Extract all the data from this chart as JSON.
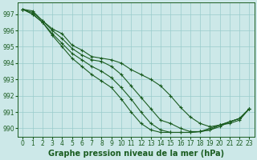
{
  "xlabel": "Graphe pression niveau de la mer (hPa)",
  "xlim": [
    -0.5,
    23.5
  ],
  "ylim": [
    989.5,
    997.7
  ],
  "yticks": [
    990,
    991,
    992,
    993,
    994,
    995,
    996,
    997
  ],
  "xticks": [
    0,
    1,
    2,
    3,
    4,
    5,
    6,
    7,
    8,
    9,
    10,
    11,
    12,
    13,
    14,
    15,
    16,
    17,
    18,
    19,
    20,
    21,
    22,
    23
  ],
  "bg_color": "#cce8e8",
  "grid_color": "#99cccc",
  "line_color": "#1a5c20",
  "lines": [
    [
      997.3,
      997.2,
      996.6,
      996.1,
      995.8,
      995.1,
      994.8,
      994.4,
      994.3,
      994.2,
      994.0,
      993.6,
      993.3,
      993.0,
      992.6,
      992.0,
      991.3,
      990.7,
      990.3,
      990.1,
      990.2,
      990.4,
      990.6,
      991.2
    ],
    [
      997.3,
      997.1,
      996.6,
      996.0,
      995.5,
      994.9,
      994.5,
      994.2,
      994.1,
      993.8,
      993.3,
      992.6,
      991.9,
      991.2,
      990.5,
      990.3,
      990.0,
      989.8,
      989.8,
      989.9,
      990.1,
      990.4,
      990.6,
      991.2
    ],
    [
      997.3,
      997.0,
      996.5,
      995.8,
      995.2,
      994.6,
      994.2,
      993.8,
      993.5,
      993.1,
      992.5,
      991.8,
      991.0,
      990.3,
      989.9,
      989.75,
      989.75,
      989.75,
      989.8,
      989.9,
      990.2,
      990.4,
      990.6,
      991.2
    ],
    [
      997.3,
      997.0,
      996.5,
      995.7,
      995.0,
      994.3,
      993.8,
      993.3,
      992.9,
      992.5,
      991.8,
      991.0,
      990.3,
      989.9,
      989.75,
      989.75,
      989.75,
      989.75,
      989.8,
      990.0,
      990.2,
      990.3,
      990.5,
      991.2
    ]
  ],
  "fig_width": 3.2,
  "fig_height": 2.0,
  "dpi": 100,
  "xlabel_fontsize": 7,
  "tick_fontsize": 5.5,
  "lw": 0.8,
  "marker_size": 3.0,
  "marker_lw": 0.8
}
